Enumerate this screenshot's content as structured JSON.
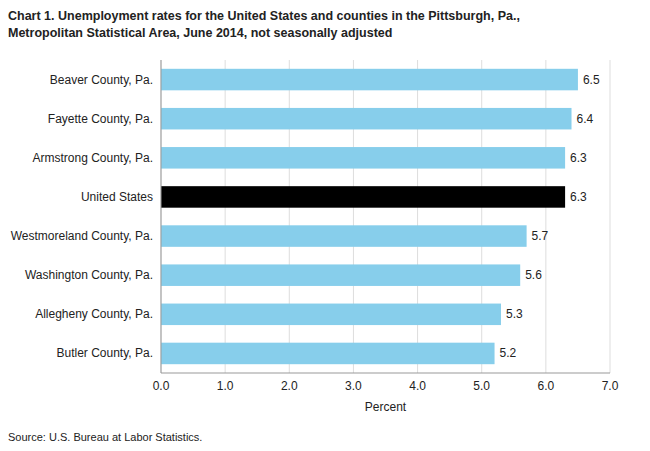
{
  "chart_data": {
    "type": "bar",
    "orientation": "horizontal",
    "title": "Chart 1. Unemployment rates for the United States and counties in the Pittsburgh, Pa.,",
    "subtitle": "Metropolitan Statistical Area, June 2014, not seasonally adjusted",
    "categories": [
      "Butler County, Pa.",
      "Allegheny County, Pa.",
      "Washington County, Pa.",
      "Westmoreland County, Pa.",
      "United States",
      "Armstrong County, Pa.",
      "Fayette County, Pa.",
      "Beaver County, Pa."
    ],
    "values": [
      5.2,
      5.3,
      5.6,
      5.7,
      6.3,
      6.3,
      6.4,
      6.5
    ],
    "colors": [
      "#87CEEB",
      "#87CEEB",
      "#87CEEB",
      "#87CEEB",
      "#000000",
      "#87CEEB",
      "#87CEEB",
      "#87CEEB"
    ],
    "xlabel": "Percent",
    "xlim": [
      0.0,
      7.0
    ],
    "xticks": [
      {
        "value": 0.0,
        "label": "0.0"
      },
      {
        "value": 1.0,
        "label": "1.0"
      },
      {
        "value": 2.0,
        "label": "2.0"
      },
      {
        "value": 3.0,
        "label": "3.0"
      },
      {
        "value": 4.0,
        "label": "4.0"
      },
      {
        "value": 5.0,
        "label": "5.0"
      },
      {
        "value": 6.0,
        "label": "6.0"
      },
      {
        "value": 7.0,
        "label": "7.0"
      }
    ],
    "grid": true,
    "data_labels": true,
    "annotations": [
      "Source: U.S. Bureau at Labor Statistics."
    ]
  }
}
